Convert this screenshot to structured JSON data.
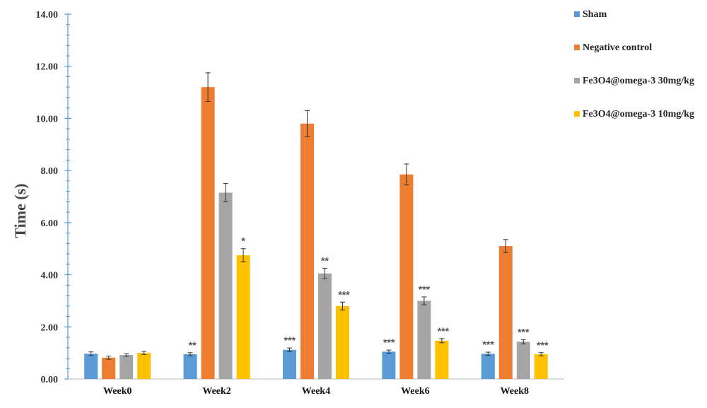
{
  "chart_data": {
    "type": "bar",
    "ylabel": "Time (s)",
    "xlabel": "",
    "ylim": [
      0,
      14
    ],
    "yticks": [
      "0.00",
      "2.00",
      "4.00",
      "6.00",
      "8.00",
      "10.00",
      "12.00",
      "14.00"
    ],
    "categories": [
      "Week0",
      "Week2",
      "Week4",
      "Week6",
      "Week8"
    ],
    "legend_position": "right",
    "series": [
      {
        "name": "Sham",
        "color": "#5b9bd5",
        "values": [
          0.97,
          0.95,
          1.12,
          1.05,
          0.97
        ],
        "errors": [
          0.07,
          0.06,
          0.07,
          0.06,
          0.06
        ],
        "significance": [
          "",
          "**",
          "***",
          "***",
          "***"
        ]
      },
      {
        "name": "Negative control",
        "color": "#ed7d31",
        "values": [
          0.82,
          11.2,
          9.8,
          7.85,
          5.1
        ],
        "errors": [
          0.06,
          0.55,
          0.5,
          0.4,
          0.25
        ],
        "significance": [
          "",
          "",
          "",
          "",
          ""
        ]
      },
      {
        "name": "Fe3O4@omega-3 30mg/kg",
        "color": "#a5a5a5",
        "values": [
          0.92,
          7.15,
          4.05,
          3.0,
          1.43
        ],
        "errors": [
          0.05,
          0.35,
          0.2,
          0.15,
          0.08
        ],
        "significance": [
          "",
          "",
          "**",
          "***",
          "***"
        ]
      },
      {
        "name": "Fe3O4@omega-3 10mg/kg",
        "color": "#ffc000",
        "values": [
          1.0,
          4.75,
          2.8,
          1.47,
          0.95
        ],
        "errors": [
          0.06,
          0.25,
          0.15,
          0.08,
          0.06
        ],
        "significance": [
          "",
          "*",
          "***",
          "***",
          "***"
        ]
      }
    ]
  }
}
